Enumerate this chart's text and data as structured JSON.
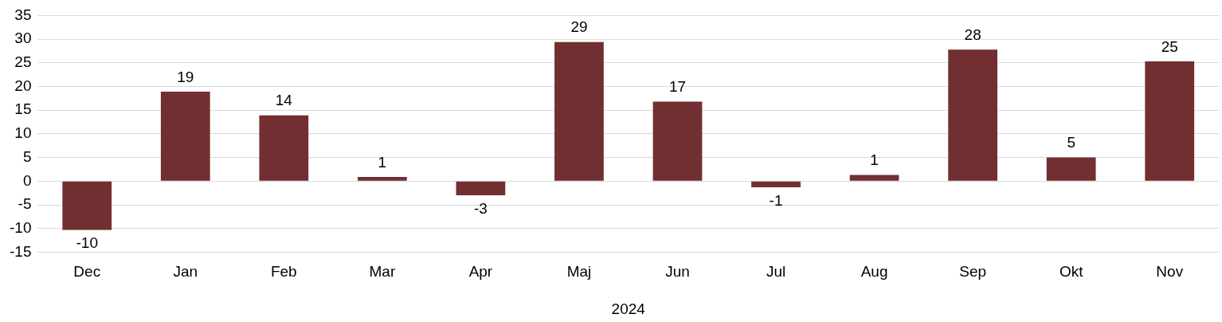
{
  "chart_data": {
    "type": "bar",
    "categories": [
      "Dec",
      "Jan",
      "Feb",
      "Mar",
      "Apr",
      "Maj",
      "Jun",
      "Jul",
      "Aug",
      "Sep",
      "Okt",
      "Nov"
    ],
    "values": [
      -10.3,
      18.9,
      13.9,
      0.9,
      -3,
      29.4,
      16.8,
      -1.3,
      1.3,
      27.8,
      5,
      25.3
    ],
    "value_labels": [
      "-10",
      "19",
      "14",
      "1",
      "-3",
      "29",
      "17",
      "-1",
      "1",
      "28",
      "5",
      "25"
    ],
    "color": "#722f31",
    "xlabel": "2024",
    "ylim": [
      -15,
      35
    ],
    "yticks": [
      -15,
      -10,
      -5,
      0,
      5,
      10,
      15,
      20,
      25,
      30,
      35
    ],
    "grid": "y",
    "legend": false
  }
}
